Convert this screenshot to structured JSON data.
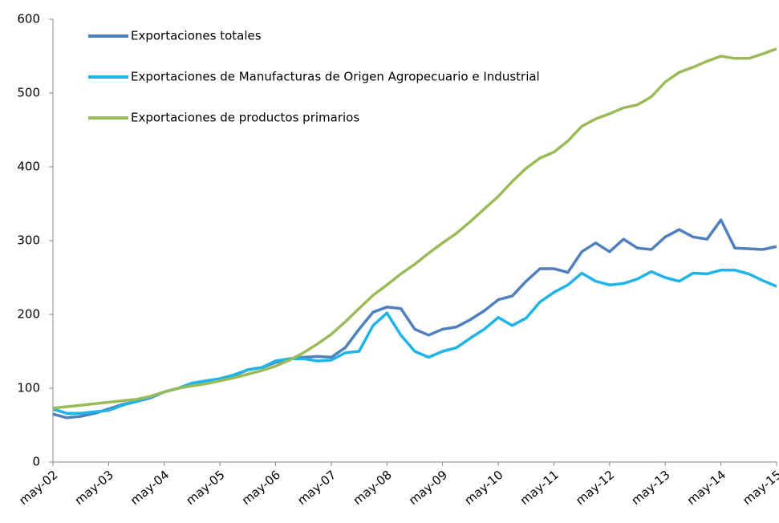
{
  "chart_data": {
    "type": "line",
    "categories": [
      "may-02",
      null,
      null,
      null,
      "may-03",
      null,
      null,
      null,
      "may-04",
      null,
      null,
      null,
      "may-05",
      null,
      null,
      null,
      "may-06",
      null,
      null,
      null,
      "may-07",
      null,
      null,
      null,
      "may-08",
      null,
      null,
      null,
      "may-09",
      null,
      null,
      null,
      "may-10",
      null,
      null,
      null,
      "may-11",
      null,
      null,
      null,
      "may-12",
      null,
      null,
      null,
      "may-13",
      null,
      null,
      null,
      "may-14",
      null,
      null,
      null,
      "may-15"
    ],
    "series": [
      {
        "name": "Exportaciones totales",
        "color": "#4f7fbd",
        "values": [
          65,
          60,
          62,
          66,
          72,
          78,
          82,
          87,
          95,
          100,
          107,
          110,
          112,
          117,
          125,
          128,
          135,
          140,
          142,
          143,
          142,
          155,
          180,
          203,
          210,
          208,
          180,
          172,
          180,
          183,
          193,
          205,
          220,
          225,
          245,
          262,
          262,
          257,
          285,
          297,
          285,
          302,
          290,
          288,
          305,
          315,
          305,
          302,
          328,
          290,
          289,
          288,
          292
        ]
      },
      {
        "name": "Exportaciones de Manufacturas de Origen Agropecuario e Industrial",
        "color": "#1fb4e8",
        "values": [
          72,
          66,
          66,
          68,
          70,
          77,
          82,
          88,
          95,
          100,
          107,
          110,
          113,
          118,
          125,
          128,
          137,
          140,
          140,
          137,
          138,
          148,
          150,
          185,
          202,
          172,
          150,
          142,
          150,
          155,
          168,
          180,
          196,
          185,
          195,
          217,
          230,
          240,
          256,
          245,
          240,
          242,
          248,
          258,
          250,
          245,
          256,
          255,
          260,
          260,
          255,
          246,
          238
        ]
      },
      {
        "name": "Exportaciones de productos primarios",
        "color": "#9bbb59",
        "values": [
          73,
          75,
          77,
          79,
          81,
          83,
          85,
          89,
          95,
          100,
          103,
          106,
          110,
          114,
          119,
          124,
          130,
          138,
          148,
          160,
          173,
          190,
          208,
          226,
          240,
          255,
          268,
          283,
          297,
          310,
          326,
          343,
          360,
          380,
          398,
          412,
          420,
          435,
          455,
          465,
          472,
          480,
          484,
          495,
          515,
          528,
          535,
          543,
          550,
          547,
          547,
          553,
          560
        ]
      }
    ],
    "ylim": [
      0,
      600
    ],
    "yticks": [
      0,
      100,
      200,
      300,
      400,
      500,
      600
    ]
  }
}
